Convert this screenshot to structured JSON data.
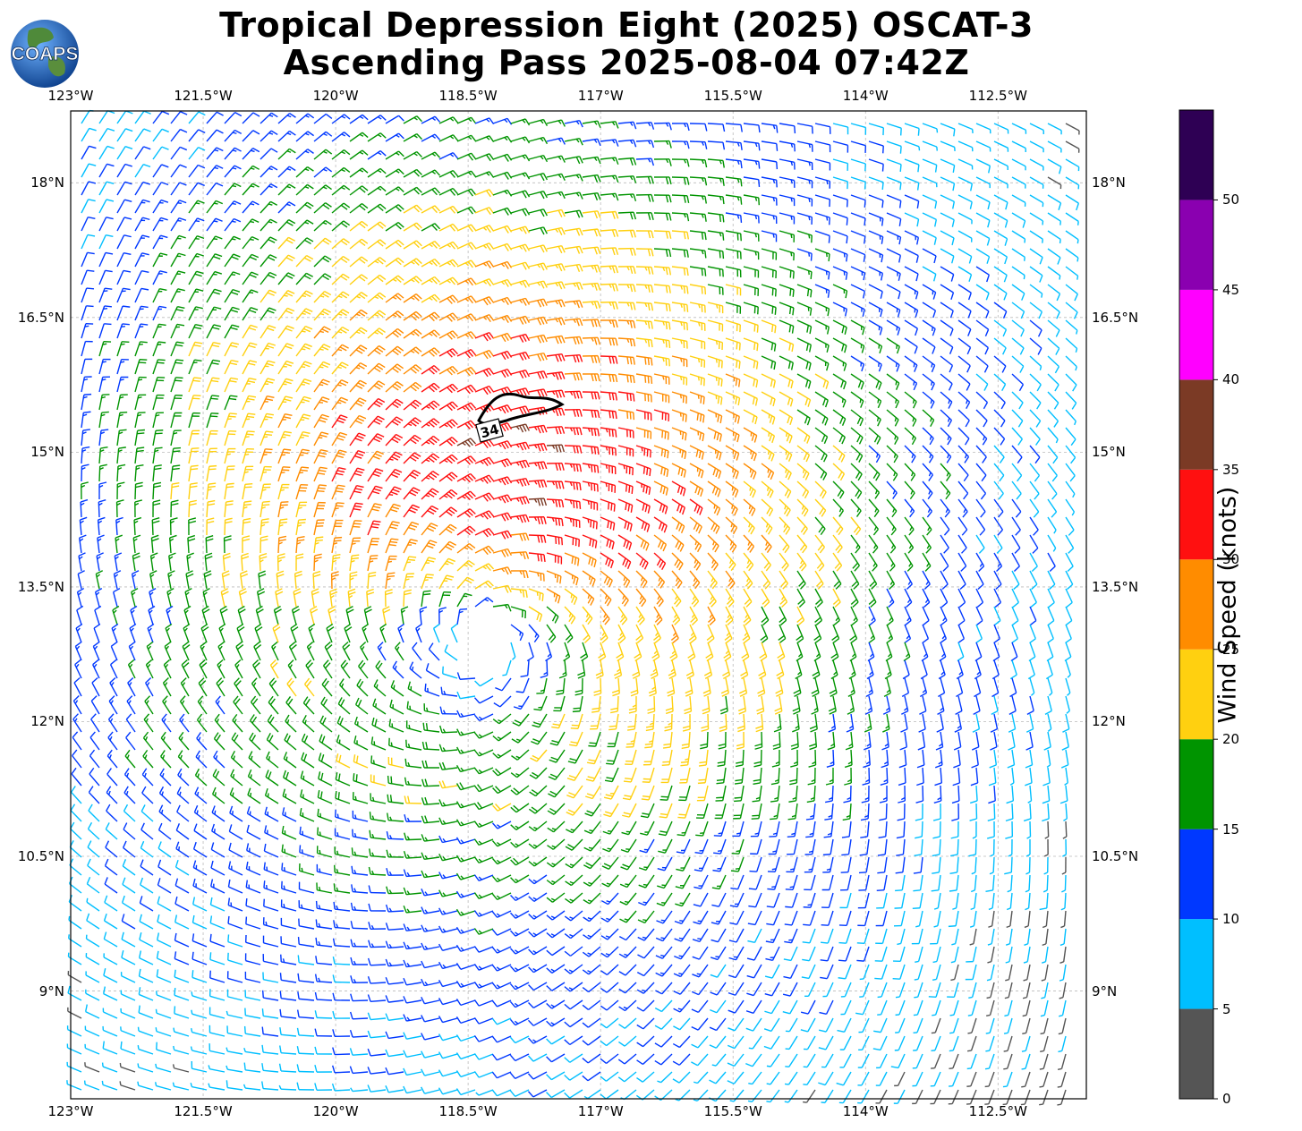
{
  "title": {
    "line1": "Tropical Depression Eight (2025) OSCAT-3",
    "line2": "Ascending Pass 2025-08-04 07:42Z"
  },
  "logo": {
    "text": "COAPS",
    "icon": "globe-logo-icon"
  },
  "map": {
    "lon_range": [
      -123,
      -111.5
    ],
    "lat_range": [
      7.8,
      18.8
    ],
    "lon_ticks": [
      "123°W",
      "121.5°W",
      "120°W",
      "118.5°W",
      "117°W",
      "115.5°W",
      "114°W",
      "112.5°W"
    ],
    "lon_values": [
      -123,
      -121.5,
      -120,
      -118.5,
      -117,
      -115.5,
      -114,
      -112.5
    ],
    "lat_ticks": [
      "18°N",
      "16.5°N",
      "15°N",
      "13.5°N",
      "12°N",
      "10.5°N",
      "9°N"
    ],
    "lat_values": [
      18,
      16.5,
      15,
      13.5,
      12,
      10.5,
      9
    ],
    "grid": true,
    "wind_barbs": {
      "center_lon": -118.3,
      "center_lat": 12.9,
      "rotation": "counterclockwise"
    },
    "contour_label": "34",
    "contour_value_knots": 34
  },
  "colorbar": {
    "label": "Wind Speed (knots)",
    "tick_labels": [
      "0",
      "5",
      "10",
      "15",
      "20",
      "25",
      "30",
      "35",
      "40",
      "45",
      "50"
    ],
    "bins": [
      0,
      5,
      10,
      15,
      20,
      25,
      30,
      35,
      40,
      45,
      50,
      55
    ],
    "colors": [
      "#555555",
      "#00bfff",
      "#0038ff",
      "#009400",
      "#ffd010",
      "#ff8c00",
      "#ff1010",
      "#7b3a25",
      "#ff00ff",
      "#8a00b0",
      "#2e0054"
    ]
  }
}
